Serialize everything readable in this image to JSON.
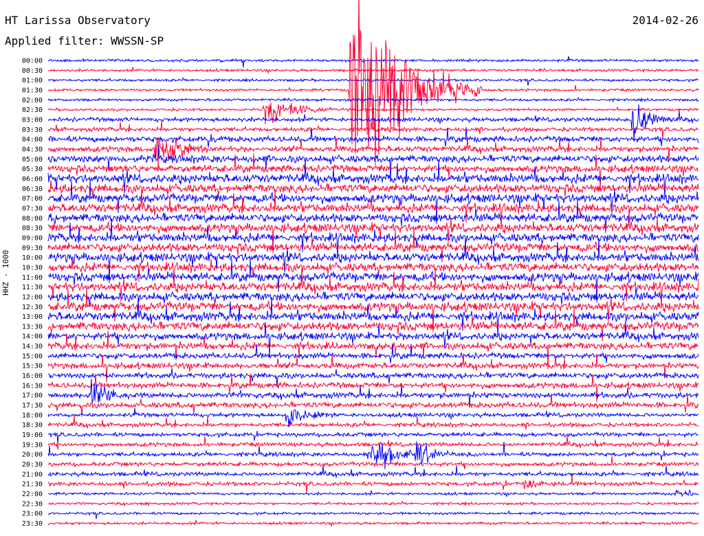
{
  "header": {
    "title": "HT Larissa Observatory",
    "date": "2014-02-26",
    "filter": "Applied filter: WWSSN-SP"
  },
  "chart_data": {
    "type": "line",
    "title": "HT Larissa Observatory",
    "subtitle": "Applied filter: WWSSN-SP",
    "ylabel": "HHZ - 1000",
    "date": "2014-02-26",
    "colors": [
      "#0000ff",
      "#ff0033"
    ],
    "row_labels": [
      "00:00",
      "00:30",
      "01:00",
      "01:30",
      "02:00",
      "02:30",
      "03:00",
      "03:30",
      "04:00",
      "04:30",
      "05:00",
      "05:30",
      "06:00",
      "06:30",
      "07:00",
      "07:30",
      "08:00",
      "08:30",
      "09:00",
      "09:30",
      "10:00",
      "10:30",
      "11:00",
      "11:30",
      "12:00",
      "12:30",
      "13:00",
      "13:30",
      "14:00",
      "14:30",
      "15:00",
      "15:30",
      "16:00",
      "16:30",
      "17:00",
      "17:30",
      "18:00",
      "18:30",
      "19:00",
      "19:30",
      "20:00",
      "20:30",
      "21:00",
      "21:30",
      "22:00",
      "22:30",
      "23:00",
      "23:30"
    ],
    "noise_level": [
      1,
      1,
      1,
      1,
      1,
      1,
      2,
      2,
      3,
      3,
      4,
      4,
      5,
      5,
      5,
      5,
      5,
      5,
      5,
      5,
      5,
      5,
      5,
      5,
      5,
      5,
      5,
      5,
      4,
      4,
      3,
      3,
      3,
      3,
      3,
      3,
      2,
      2,
      2,
      2,
      2,
      2,
      2,
      2,
      1,
      1,
      1,
      1
    ],
    "events": [
      {
        "row": "01:30",
        "minute": 14,
        "amplitude": 85,
        "duration": 6
      },
      {
        "row": "02:30",
        "minute": 10,
        "amplitude": 12,
        "duration": 4
      },
      {
        "row": "03:00",
        "minute": 27,
        "amplitude": 20,
        "duration": 2
      },
      {
        "row": "04:30",
        "minute": 5,
        "amplitude": 15,
        "duration": 3
      },
      {
        "row": "20:00",
        "minute": 15,
        "amplitude": 14,
        "duration": 3
      },
      {
        "row": "20:00",
        "minute": 17,
        "amplitude": 12,
        "duration": 2
      },
      {
        "row": "17:00",
        "minute": 2,
        "amplitude": 14,
        "duration": 2
      },
      {
        "row": "18:00",
        "minute": 11,
        "amplitude": 12,
        "duration": 2
      },
      {
        "row": "21:30",
        "minute": 22,
        "amplitude": 4,
        "duration": 2
      },
      {
        "row": "22:00",
        "minute": 29,
        "amplitude": 5,
        "duration": 2
      }
    ]
  }
}
